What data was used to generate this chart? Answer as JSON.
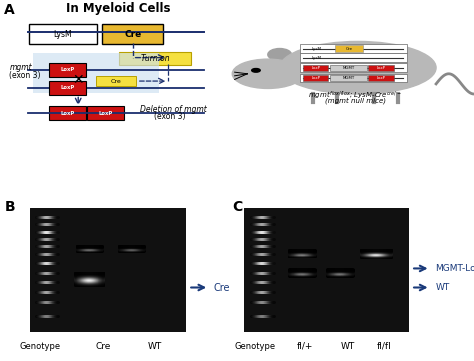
{
  "title_A": "In Myeloid Cells",
  "label_A": "A",
  "label_B": "B",
  "label_C": "C",
  "lysm_label": "LysM",
  "cre_label": "Cre",
  "turn_on_label": "Turn on",
  "deletion_label": "Deletion of mgmt",
  "deletion_label2": "(exon 3)",
  "mgmt_exon_label1": "mgmt",
  "mgmt_exon_label2": "(exon 3)",
  "arrow_cre": "Cre",
  "arrow_mgmt_loxp": "MGMT-LoxP",
  "arrow_wt": "WT",
  "bg_color": "#ffffff",
  "gel_bg": "#111111",
  "dark_blue": "#1a3a7a",
  "lysm_box_color": "#ffffff",
  "cre_box_color": "#e8b830",
  "loxp_box_color": "#cc1111",
  "highlight_color": "#cce0f0",
  "dna_line_color": "#1a2e6e",
  "genotype_B": "Genotype",
  "cre_B": "Cre",
  "wt_B": "WT",
  "genotype_C": "Genotype",
  "fl_plus_C": "fl/+",
  "wt_C": "WT",
  "fl_fl_C": "fl/fl"
}
